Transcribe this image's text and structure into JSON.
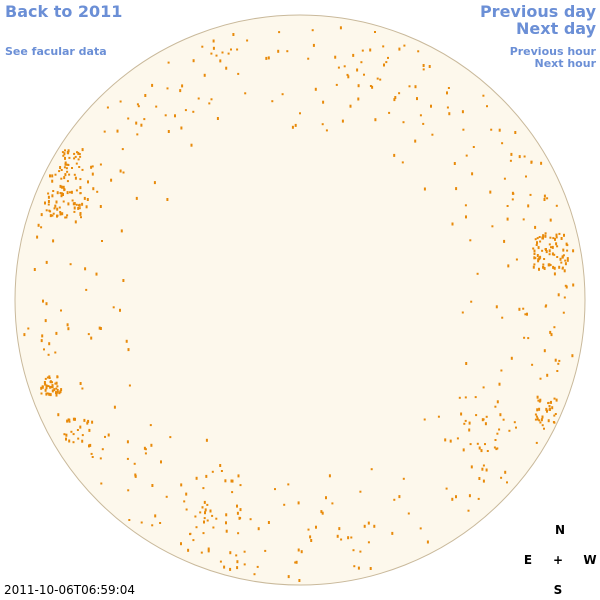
{
  "nav": {
    "back": "Back to 2011",
    "facular": "See facular data",
    "previous_day": "Previous day",
    "next_day": "Next day",
    "previous_hour": "Previous hour",
    "next_hour": "Next hour"
  },
  "timestamp": "2011-10-06T06:59:04",
  "compass": {
    "north": "N",
    "east": "E",
    "center": "+",
    "west": "W",
    "south": "S"
  }
}
